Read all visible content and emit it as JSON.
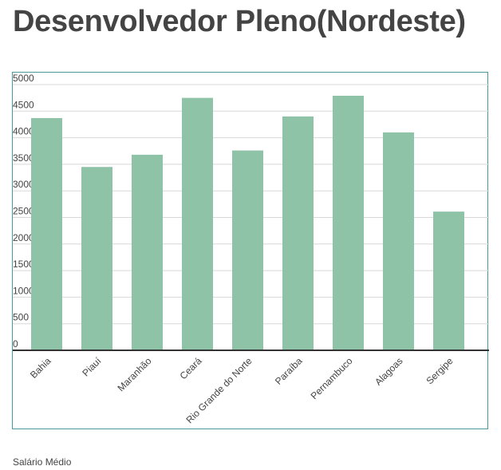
{
  "page": {
    "title": "Desenvolvedor Pleno(Nordeste)",
    "series_label": "Salário Médio"
  },
  "colors": {
    "bar": "#8fc3a8",
    "grid": "#d8d8d8",
    "axis": "#333333",
    "frame": "#4a9a9a",
    "text": "#444444"
  },
  "chart_data": {
    "type": "bar",
    "categories": [
      "Bahia",
      "Piauí",
      "Maranhão",
      "Ceará",
      "Rio Grande do Norte",
      "Paraíba",
      "Pernambuco",
      "Alagoas",
      "Sergipe"
    ],
    "series": [
      {
        "name": "Salário Médio",
        "values": [
          4370,
          3450,
          3680,
          4750,
          3760,
          4400,
          4790,
          4100,
          2610
        ]
      }
    ],
    "ylim": [
      0,
      5000
    ],
    "yticks": [
      0,
      500,
      1000,
      1500,
      2000,
      2500,
      3000,
      3500,
      4000,
      4500,
      5000
    ],
    "grid": true,
    "legend": "bottom-left"
  }
}
